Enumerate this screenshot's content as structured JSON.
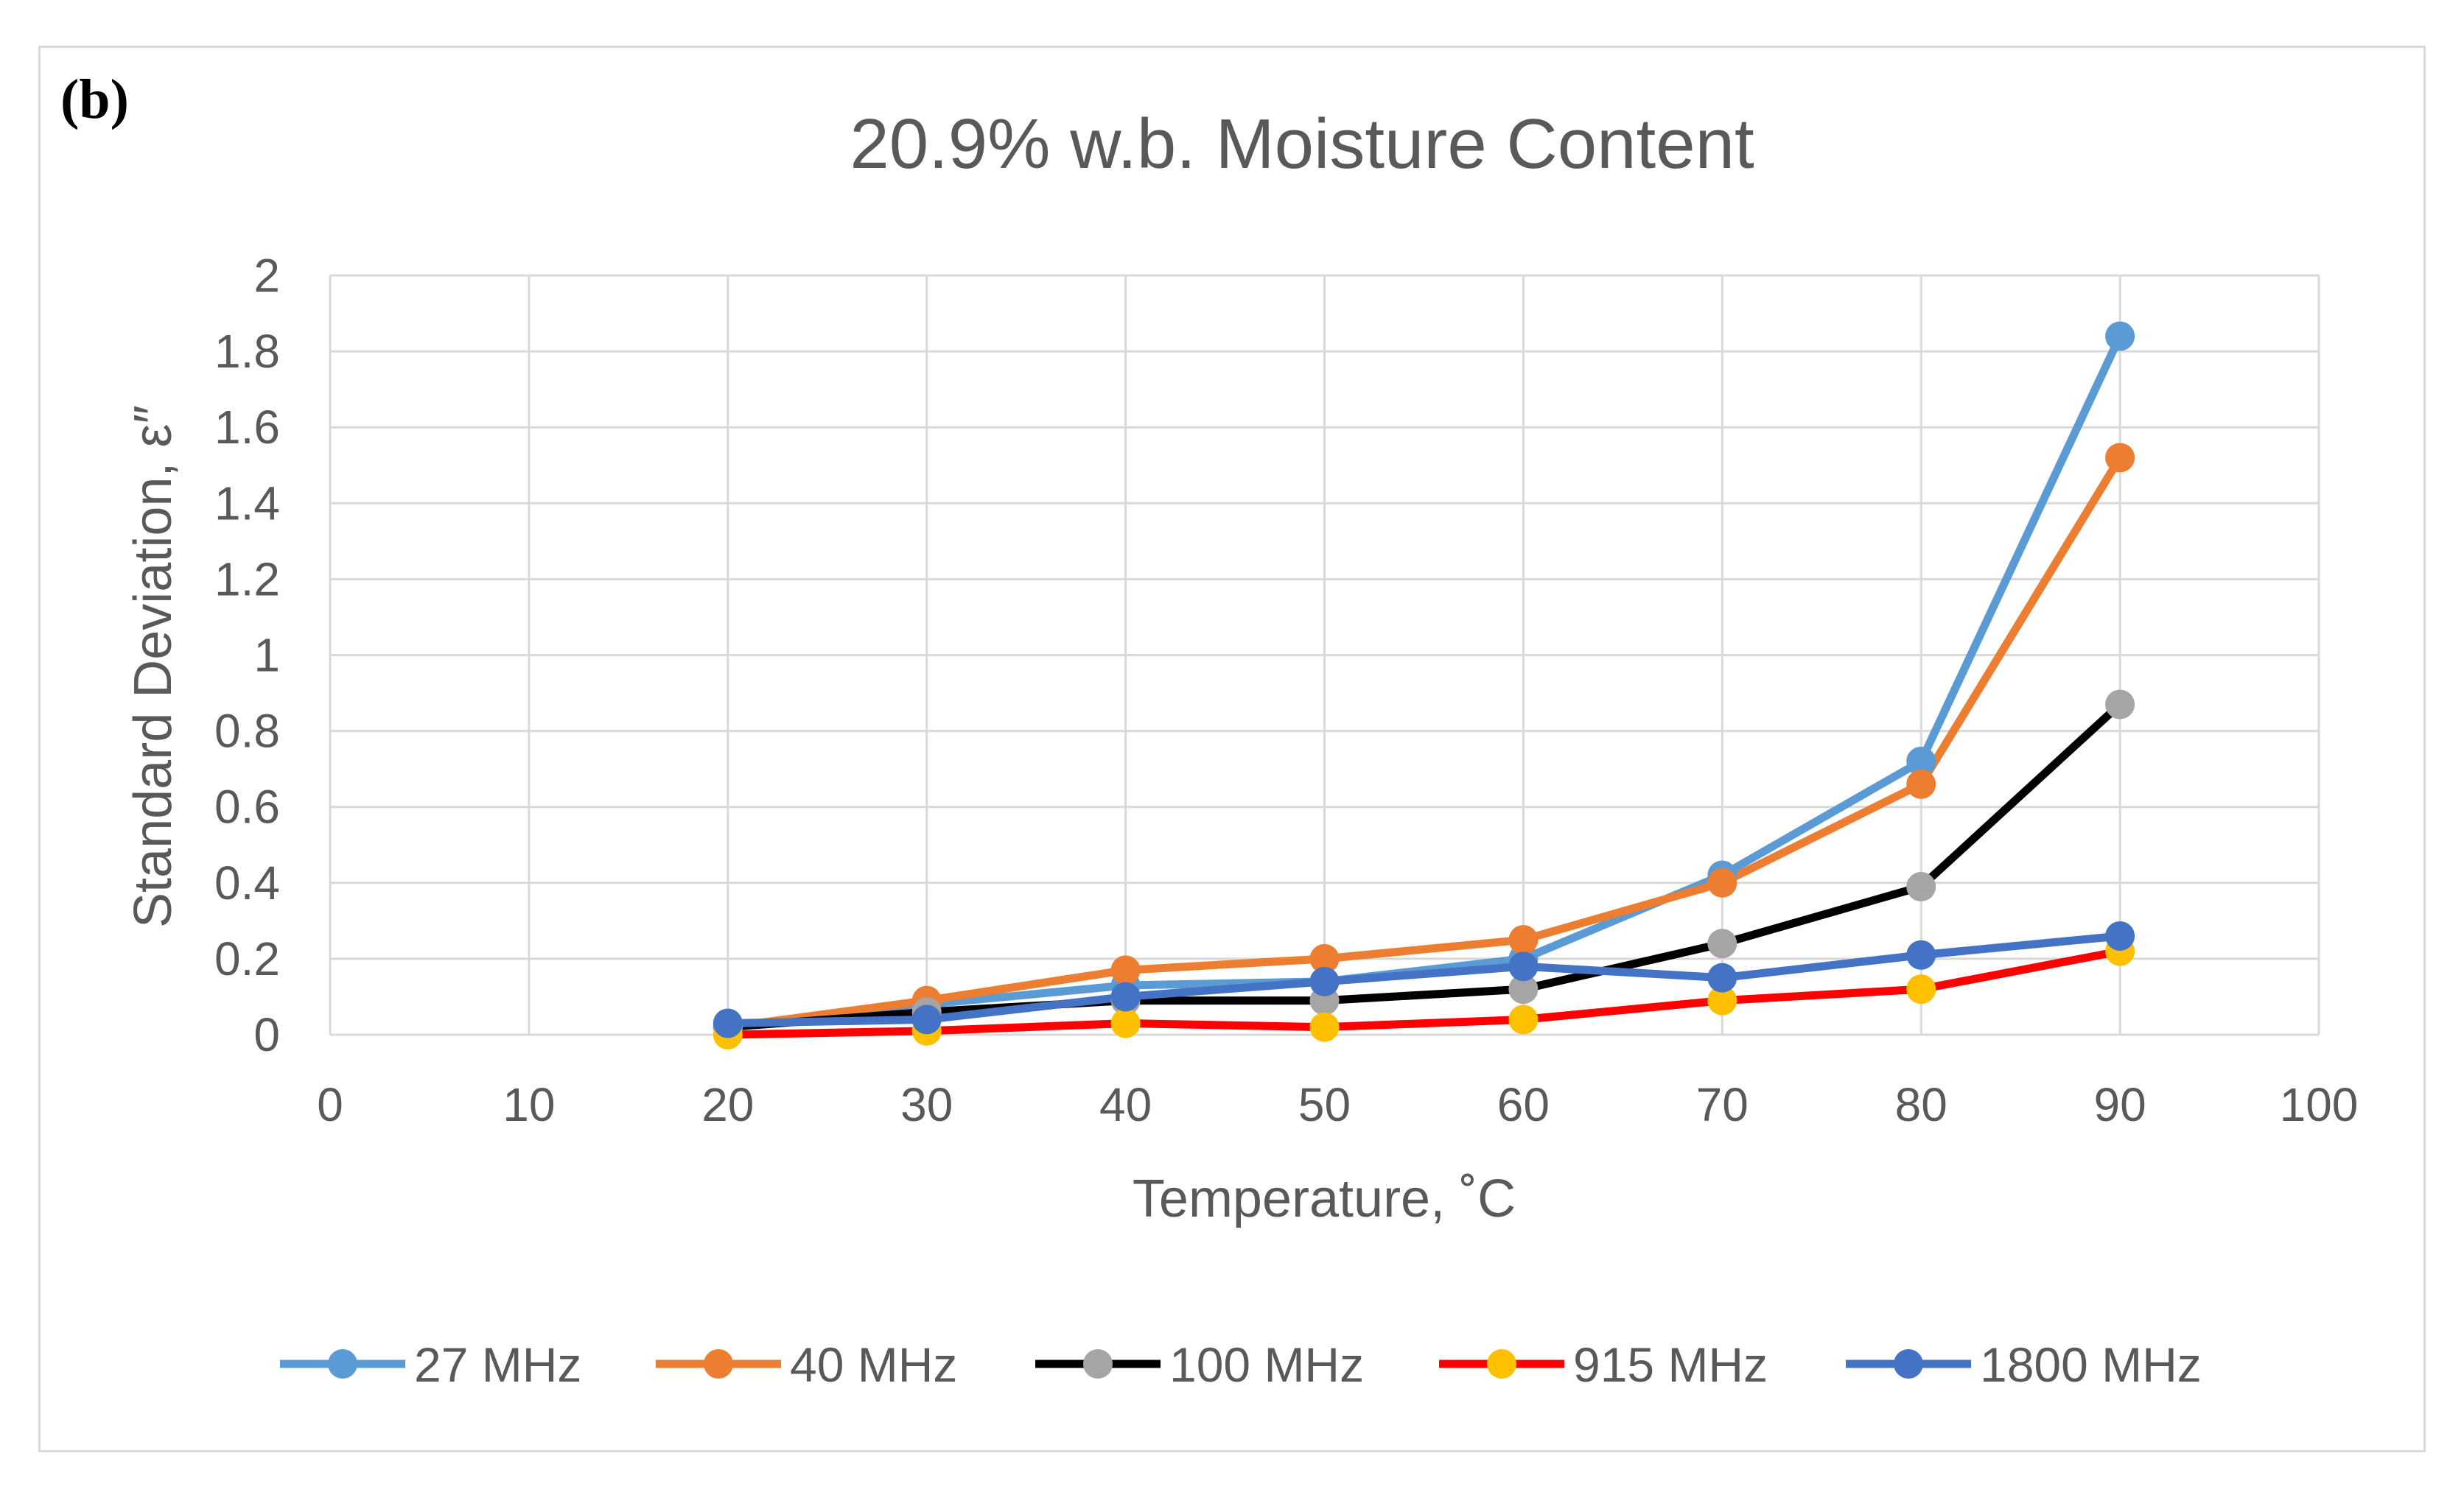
{
  "panel_label": "(b)",
  "chart_data": {
    "type": "line",
    "title": "20.9% w.b. Moisture Content",
    "xlabel": "Temperature, ˚C",
    "ylabel": "Standard Deviation, ε″",
    "xlim": [
      0,
      100
    ],
    "ylim": [
      0,
      2
    ],
    "x_ticks": [
      "0",
      "10",
      "20",
      "30",
      "40",
      "50",
      "60",
      "70",
      "80",
      "90",
      "100"
    ],
    "y_ticks": [
      "0",
      "0.2",
      "0.4",
      "0.6",
      "0.8",
      "1",
      "1.2",
      "1.4",
      "1.6",
      "1.8",
      "2"
    ],
    "grid": true,
    "legend_position": "bottom",
    "x": [
      20,
      30,
      40,
      50,
      60,
      70,
      80,
      90
    ],
    "series": [
      {
        "name": "27 MHz",
        "line_color": "#5b9bd5",
        "marker_color": "#5b9bd5",
        "values": [
          0.02,
          0.08,
          0.13,
          0.14,
          0.2,
          0.42,
          0.72,
          1.84
        ]
      },
      {
        "name": "40 MHz",
        "line_color": "#ed7d31",
        "marker_color": "#ed7d31",
        "values": [
          0.02,
          0.09,
          0.17,
          0.2,
          0.25,
          0.4,
          0.66,
          1.52
        ]
      },
      {
        "name": "100 MHz",
        "line_color": "#000000",
        "marker_color": "#a5a5a5",
        "values": [
          0.02,
          0.06,
          0.09,
          0.09,
          0.12,
          0.24,
          0.39,
          0.87
        ]
      },
      {
        "name": "915 MHz",
        "line_color": "#ff0000",
        "marker_color": "#ffc000",
        "values": [
          0.0,
          0.01,
          0.03,
          0.02,
          0.04,
          0.09,
          0.12,
          0.22
        ]
      },
      {
        "name": "1800 MHz",
        "line_color": "#4472c4",
        "marker_color": "#4472c4",
        "values": [
          0.03,
          0.04,
          0.1,
          0.14,
          0.18,
          0.15,
          0.21,
          0.26
        ]
      }
    ]
  }
}
